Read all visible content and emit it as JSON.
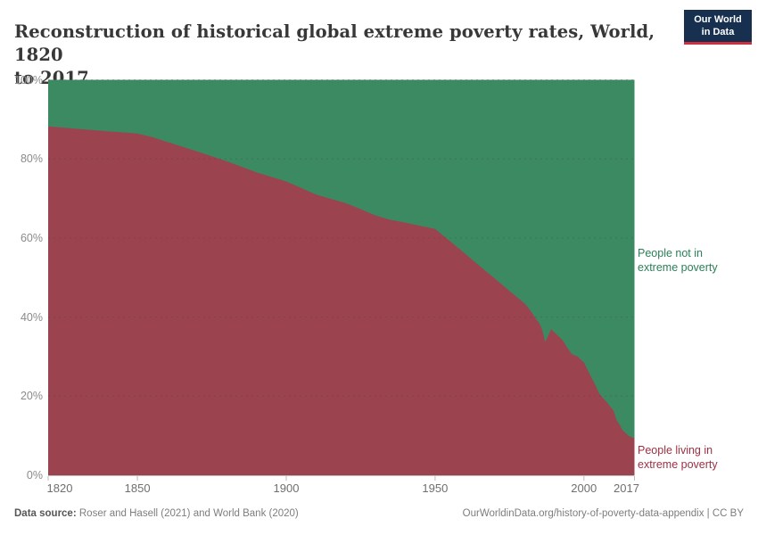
{
  "header": {
    "title": "Reconstruction of historical global extreme poverty rates, World, 1820 to 2017",
    "title_line1": "Reconstruction of historical global extreme poverty rates, World, 1820",
    "title_line2": "to 2017"
  },
  "logo": {
    "line1": "Our World",
    "line2": "in Data",
    "bg_color": "#18304F",
    "bar_color": "#CE2F3F"
  },
  "legend": {
    "not_poor": {
      "line1": "People not in",
      "line2": "extreme poverty",
      "color": "#2a7f57"
    },
    "poor": {
      "line1": "People living in",
      "line2": "extreme poverty",
      "color": "#9c3042"
    }
  },
  "footer": {
    "source_label": "Data source:",
    "source_text": " Roser and Hasell (2021) and World Bank (2020)",
    "attribution": "OurWorldinData.org/history-of-poverty-data-appendix | CC BY"
  },
  "chart_data": {
    "type": "area",
    "stacked": true,
    "stack_total": 100,
    "title": "Reconstruction of historical global extreme poverty rates, World, 1820 to 2017",
    "xlabel": "",
    "ylabel": "",
    "xlim": [
      1820,
      2017
    ],
    "ylim": [
      0,
      100
    ],
    "grid": "dashed horizontal",
    "legend_position": "right",
    "x": [
      1820,
      1830,
      1840,
      1850,
      1855,
      1860,
      1870,
      1880,
      1890,
      1900,
      1910,
      1920,
      1925,
      1930,
      1935,
      1940,
      1945,
      1950,
      1955,
      1960,
      1965,
      1970,
      1975,
      1980,
      1981,
      1983,
      1984,
      1985,
      1986,
      1987,
      1989,
      1990,
      1992,
      1993,
      1995,
      1996,
      1998,
      1999,
      2000,
      2002,
      2004,
      2005,
      2006,
      2008,
      2010,
      2011,
      2012,
      2013,
      2014,
      2015,
      2016,
      2017
    ],
    "series": [
      {
        "name": "People living in extreme poverty",
        "color": "#9B4450",
        "values": [
          88.2,
          87.6,
          87.0,
          86.4,
          85.5,
          84.3,
          81.9,
          79.4,
          76.6,
          74.3,
          71.0,
          68.8,
          67.3,
          65.7,
          64.6,
          63.9,
          63.1,
          62.3,
          59.2,
          56.1,
          52.9,
          49.8,
          46.6,
          43.5,
          42.7,
          40.6,
          39.4,
          38.5,
          36.8,
          33.7,
          36.9,
          36.2,
          34.8,
          34.0,
          31.6,
          30.6,
          30.0,
          29.2,
          28.6,
          25.5,
          22.6,
          20.9,
          19.9,
          18.2,
          16.3,
          13.9,
          12.8,
          11.4,
          10.7,
          10.0,
          9.6,
          9.4
        ]
      },
      {
        "name": "People not in extreme poverty",
        "color": "#3C8A62",
        "values": [
          11.8,
          12.4,
          13.0,
          13.6,
          14.5,
          15.7,
          18.1,
          20.6,
          23.4,
          25.7,
          29.0,
          31.2,
          32.7,
          34.3,
          35.4,
          36.1,
          36.9,
          37.7,
          40.8,
          43.9,
          47.1,
          50.2,
          53.4,
          56.5,
          57.3,
          59.4,
          60.6,
          61.5,
          63.2,
          66.3,
          63.1,
          63.8,
          65.2,
          66.0,
          68.4,
          69.4,
          70.0,
          70.8,
          71.4,
          74.5,
          77.4,
          79.1,
          80.1,
          81.8,
          83.7,
          86.1,
          87.2,
          88.6,
          89.3,
          90.0,
          90.4,
          90.6
        ]
      }
    ],
    "yticks": [
      "0%",
      "20%",
      "40%",
      "60%",
      "80%",
      "100%"
    ],
    "ytick_values": [
      0,
      20,
      40,
      60,
      80,
      100
    ],
    "xticks": [
      1820,
      1850,
      1900,
      1950,
      2000,
      2017
    ]
  }
}
